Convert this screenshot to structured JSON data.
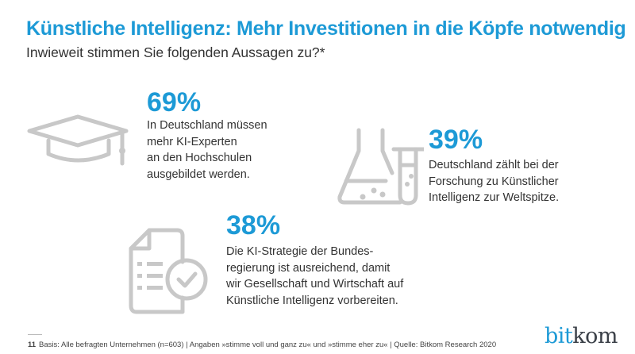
{
  "header": {
    "title": "Künstliche Intelligenz: Mehr Investitionen in die Köpfe notwendig",
    "subtitle": "Inwieweit stimmen Sie folgenden Aussagen zu?*"
  },
  "colors": {
    "accent": "#1d9ad6",
    "icon": "#c8c8c8",
    "text": "#333333"
  },
  "stats": [
    {
      "icon": "graduation-cap-icon",
      "value": "69%",
      "lines": [
        "In Deutschland müssen",
        "mehr KI-Experten",
        "an den Hochschulen",
        "ausgebildet werden."
      ]
    },
    {
      "icon": "lab-flask-icon",
      "value": "39%",
      "lines": [
        "Deutschland zählt bei der",
        "Forschung zu Künstlicher",
        "Intelligenz zur Weltspitze."
      ]
    },
    {
      "icon": "document-check-icon",
      "value": "38%",
      "lines": [
        "Die KI-Strategie der Bundes-",
        "regierung ist ausreichend, damit",
        "wir Gesellschaft und Wirtschaft auf",
        "Künstliche Intelligenz vorbereiten."
      ]
    }
  ],
  "footer": {
    "page_number": "11",
    "note": "Basis: Alle befragten Unternehmen (n=603) | Angaben »stimme voll und ganz zu« und »stimme eher zu« | Quelle: Bitkom Research 2020",
    "logo_part1": "bit",
    "logo_part2": "kom"
  }
}
